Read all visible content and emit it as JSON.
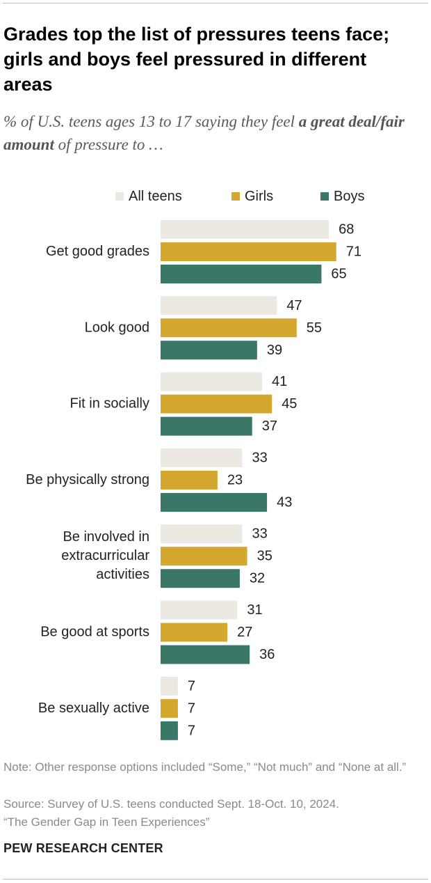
{
  "title": "Grades top the list of pressures teens face; girls and boys feel pressured in different areas",
  "subtitle_prefix": "% of U.S. teens ages 13 to 17 saying they feel ",
  "subtitle_bold": "a great deal/fair amount",
  "subtitle_suffix": " of pressure to …",
  "colors": {
    "all_teens": "#ece9e2",
    "girls": "#d4a82e",
    "boys": "#3a7766"
  },
  "chart_data": {
    "type": "bar",
    "orientation": "horizontal",
    "categories": [
      "Get good grades",
      "Look good",
      "Fit in socially",
      "Be physically strong",
      "Be involved in extracurricular activities",
      "Be good at sports",
      "Be sexually active"
    ],
    "category_lines": [
      [
        "Get good grades"
      ],
      [
        "Look good"
      ],
      [
        "Fit in socially"
      ],
      [
        "Be physically strong"
      ],
      [
        "Be involved in",
        "extracurricular",
        "activities"
      ],
      [
        "Be good at sports"
      ],
      [
        "Be sexually active"
      ]
    ],
    "series": [
      {
        "name": "All teens",
        "color": "#ece9e2",
        "values": [
          68,
          47,
          41,
          33,
          33,
          31,
          7
        ]
      },
      {
        "name": "Girls",
        "color": "#d4a82e",
        "values": [
          71,
          55,
          45,
          23,
          35,
          27,
          7
        ]
      },
      {
        "name": "Boys",
        "color": "#3a7766",
        "values": [
          65,
          39,
          37,
          43,
          32,
          36,
          7
        ]
      }
    ],
    "legend_position": "top",
    "data_labels": true,
    "grid": false
  },
  "note": "Note: Other response options included “Some,” “Not much” and “None at all.”",
  "source": "Source: Survey of U.S. teens conducted Sept. 18-Oct. 10, 2024.",
  "report": "“The Gender Gap in Teen Experiences”",
  "brand": "PEW RESEARCH CENTER"
}
